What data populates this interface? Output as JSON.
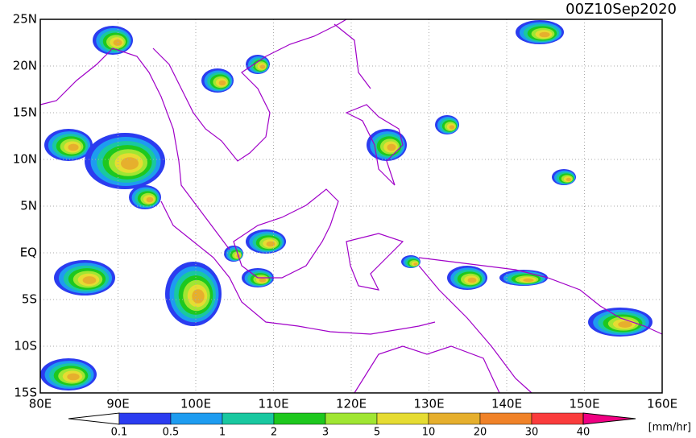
{
  "title": "00Z10Sep2020",
  "map": {
    "lat_labels": [
      "25N",
      "20N",
      "15N",
      "10N",
      "5N",
      "EQ",
      "5S",
      "10S",
      "15S"
    ],
    "lon_labels": [
      "80E",
      "90E",
      "100E",
      "110E",
      "120E",
      "130E",
      "140E",
      "150E",
      "160E"
    ]
  },
  "colorbar": {
    "labels": [
      "0.1",
      "0.5",
      "1",
      "2",
      "3",
      "5",
      "10",
      "20",
      "30",
      "40"
    ],
    "colors": [
      "#2b3cf0",
      "#1e9cf0",
      "#19c8a0",
      "#1ec81e",
      "#a0e632",
      "#e6dc32",
      "#e6af2d",
      "#f08228",
      "#fa3c3c",
      "#f00082"
    ],
    "unit": "[mm/hr]"
  }
}
